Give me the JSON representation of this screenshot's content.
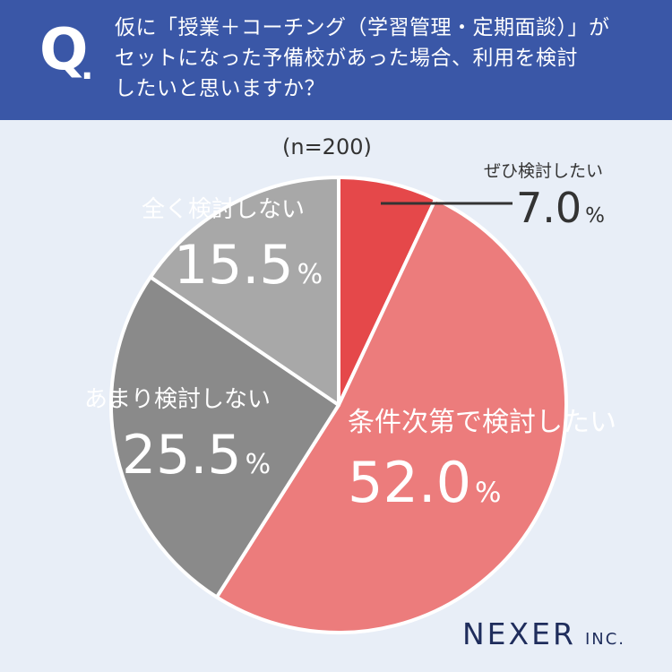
{
  "question": {
    "mark": "Q",
    "mark_dot": ".",
    "lines": [
      "仮に「授業＋コーチング（学習管理・定期面談）」が",
      "セットになった予備校があった場合、利用を検討",
      "したいと思いますか？"
    ]
  },
  "sample_size": "(n=200)",
  "chart_data": {
    "type": "pie",
    "slices": [
      {
        "label": "ぜひ検討したい",
        "value": 7.0,
        "display": "7.0",
        "color": "#e5484a"
      },
      {
        "label": "条件次第で検討したい",
        "value": 52.0,
        "display": "52.0",
        "color": "#ec7c7c"
      },
      {
        "label": "あまり検討しない",
        "value": 25.5,
        "display": "25.5",
        "color": "#8a8a8a"
      },
      {
        "label": "全く検討しない",
        "value": 15.5,
        "display": "15.5",
        "color": "#a8a8a8"
      }
    ],
    "unit": "%",
    "start_angle": "12 o'clock",
    "direction": "clockwise"
  },
  "colors": {
    "header_bg": "#3a57a7",
    "page_bg": "#e8eef7",
    "slice_border": "#ffffff",
    "leader_line": "#333333"
  },
  "logo": {
    "main": "NEXER",
    "suffix": "INC."
  }
}
